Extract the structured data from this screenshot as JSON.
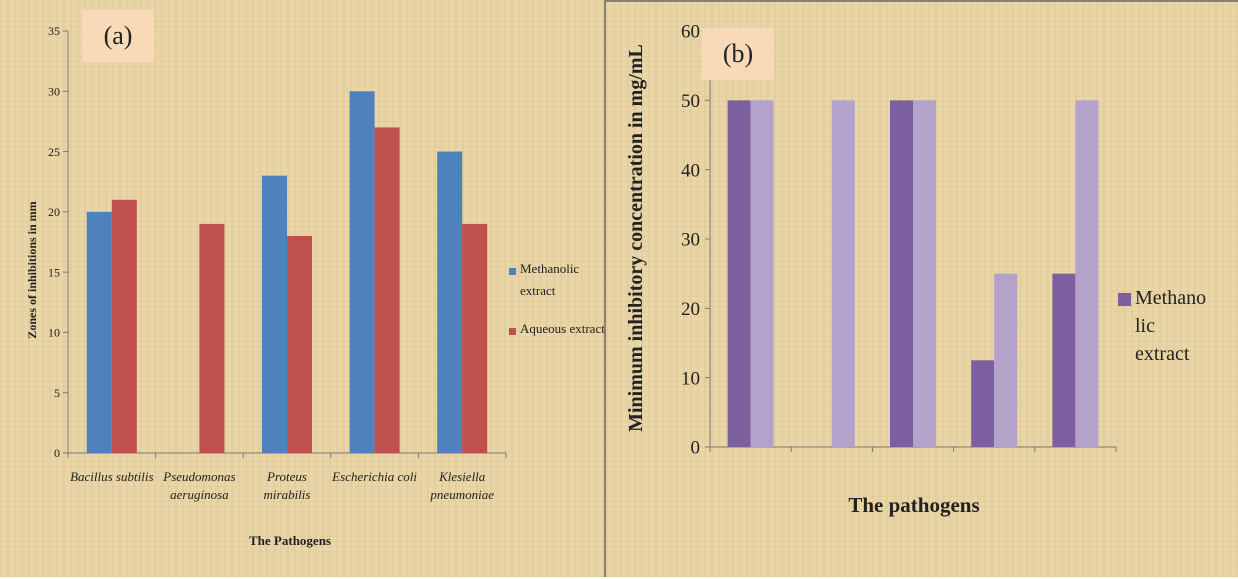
{
  "chart_data": [
    {
      "type": "bar",
      "panel_label": "(a)",
      "categories": [
        [
          "Bacillus subtilis"
        ],
        [
          "Pseudomonas",
          "aeruginosa"
        ],
        [
          "Proteus",
          "mirabilis"
        ],
        [
          "Escherichia coli"
        ],
        [
          "Klesiella",
          "pneumoniae"
        ]
      ],
      "series": [
        {
          "name": [
            "Methanolic",
            "extract"
          ],
          "values": [
            20,
            0,
            23,
            30,
            25
          ],
          "color": "#4f81bd"
        },
        {
          "name": [
            "Aqueous extract"
          ],
          "values": [
            21,
            19,
            18,
            27,
            19
          ],
          "color": "#c0504d"
        }
      ],
      "xlabel": "The Pathogens",
      "ylabel": "Zones of inhibitions in mm",
      "ylim": [
        0,
        35
      ],
      "yticks": [
        0,
        5,
        10,
        15,
        20,
        25,
        30,
        35
      ],
      "legend": "right"
    },
    {
      "type": "bar",
      "panel_label": "(b)",
      "categories": [
        "",
        "",
        "",
        "",
        ""
      ],
      "series": [
        {
          "name": [
            "Methano",
            "lic",
            "extract"
          ],
          "values": [
            50,
            0,
            50,
            12.5,
            25
          ],
          "color": "#7b5f9e"
        },
        {
          "values": [
            50,
            50,
            50,
            25,
            50
          ],
          "color": "#b3a2c9"
        }
      ],
      "xlabel": "The pathogens",
      "ylabel": "Minimum inhibitory concentration in mg/mL",
      "ylim": [
        0,
        60
      ],
      "yticks": [
        0,
        10,
        20,
        30,
        40,
        50,
        60
      ],
      "legend": "right"
    }
  ]
}
